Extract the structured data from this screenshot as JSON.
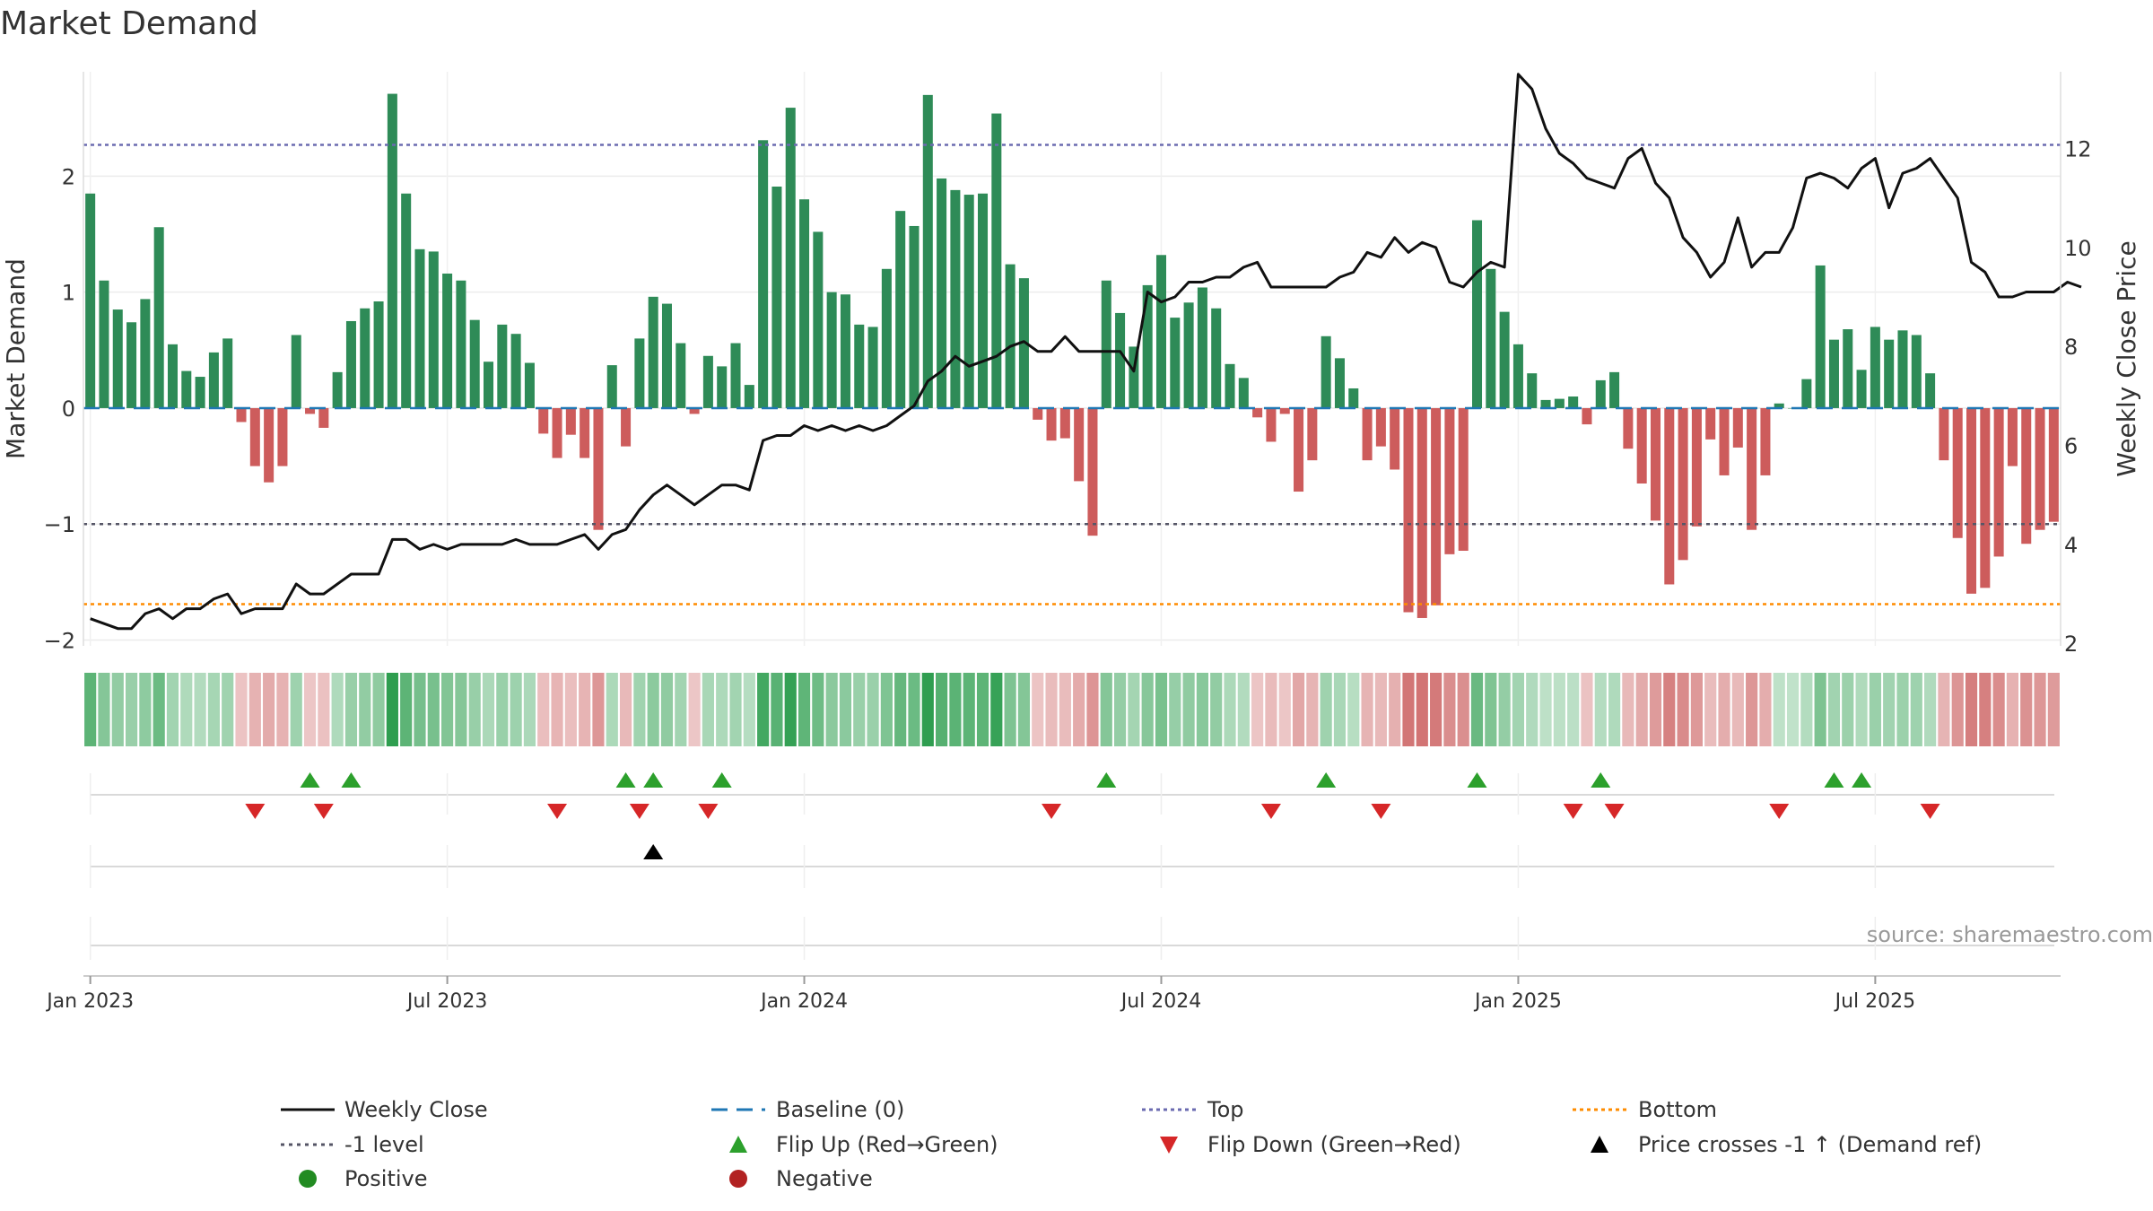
{
  "chart_data": {
    "type": "bar",
    "title": "Market Demand",
    "ylabel": "Market Demand",
    "y2label": "Weekly Close Price",
    "ylim": [
      -2.05,
      2.9
    ],
    "y2lim": [
      1.95,
      13.55
    ],
    "yticks": [
      "2",
      "1",
      "0",
      "−1",
      "−2"
    ],
    "yticks_values": [
      2,
      1,
      0,
      -1,
      -2
    ],
    "y2ticks": [
      "12",
      "10",
      "8",
      "6",
      "4",
      "2"
    ],
    "y2ticks_values": [
      12,
      10,
      8,
      6,
      4,
      2
    ],
    "xticks": [
      "Jan 2023",
      "Jul 2023",
      "Jan 2024",
      "Jul 2024",
      "Jan 2025",
      "Jul 2025"
    ],
    "xticks_week": [
      1,
      27,
      53,
      79,
      105,
      131
    ],
    "top_level": 2.27,
    "bottom_level": -1.69,
    "minus_one_level": -1.0,
    "demand": [
      1.85,
      1.1,
      0.85,
      0.74,
      0.94,
      1.56,
      0.55,
      0.32,
      0.27,
      0.48,
      0.6,
      -0.12,
      -0.5,
      -0.64,
      -0.5,
      0.63,
      -0.05,
      -0.17,
      0.31,
      0.75,
      0.86,
      0.92,
      2.71,
      1.85,
      1.37,
      1.35,
      1.16,
      1.1,
      0.76,
      0.4,
      0.72,
      0.64,
      0.39,
      -0.22,
      -0.43,
      -0.23,
      -0.43,
      -1.05,
      0.37,
      -0.33,
      0.6,
      0.96,
      0.9,
      0.56,
      -0.05,
      0.45,
      0.36,
      0.56,
      0.2,
      2.31,
      1.91,
      2.59,
      1.8,
      1.52,
      1.0,
      0.98,
      0.72,
      0.7,
      1.2,
      1.7,
      1.57,
      2.7,
      1.98,
      1.88,
      1.84,
      1.85,
      2.54,
      1.24,
      1.12,
      -0.1,
      -0.28,
      -0.26,
      -0.63,
      -1.1,
      1.1,
      0.82,
      0.53,
      1.06,
      1.32,
      0.78,
      0.91,
      1.04,
      0.86,
      0.38,
      0.26,
      -0.08,
      -0.29,
      -0.05,
      -0.72,
      -0.45,
      0.62,
      0.43,
      0.17,
      -0.45,
      -0.33,
      -0.53,
      -1.76,
      -1.81,
      -1.7,
      -1.26,
      -1.23,
      1.62,
      1.2,
      0.83,
      0.55,
      0.3,
      0.07,
      0.08,
      0.1,
      -0.14,
      0.24,
      0.31,
      -0.35,
      -0.65,
      -0.97,
      -1.52,
      -1.31,
      -1.02,
      -0.27,
      -0.58,
      -0.34,
      -1.05,
      -0.58,
      0.04,
      0.0,
      0.25,
      1.23,
      0.59,
      0.68,
      0.33,
      0.7,
      0.59,
      0.67,
      0.63,
      0.3,
      -0.45,
      -1.12,
      -1.6,
      -1.55,
      -1.28,
      -0.5,
      -1.17,
      -1.05,
      -0.98
    ],
    "price": [
      2.5,
      2.4,
      2.3,
      2.3,
      2.6,
      2.7,
      2.5,
      2.7,
      2.7,
      2.9,
      3.0,
      2.6,
      2.7,
      2.7,
      2.7,
      3.2,
      3.0,
      3.0,
      3.2,
      3.4,
      3.4,
      3.4,
      4.1,
      4.1,
      3.9,
      4.0,
      3.9,
      4.0,
      4.0,
      4.0,
      4.0,
      4.1,
      4.0,
      4.0,
      4.0,
      4.1,
      4.2,
      3.9,
      4.2,
      4.3,
      4.7,
      5.0,
      5.2,
      5.0,
      4.8,
      5.0,
      5.2,
      5.2,
      5.1,
      6.1,
      6.2,
      6.2,
      6.4,
      6.3,
      6.4,
      6.3,
      6.4,
      6.3,
      6.4,
      6.6,
      6.8,
      7.3,
      7.5,
      7.8,
      7.6,
      7.7,
      7.8,
      8.0,
      8.1,
      7.9,
      7.9,
      8.2,
      7.9,
      7.9,
      7.9,
      7.9,
      7.5,
      9.1,
      8.9,
      9.0,
      9.3,
      9.3,
      9.4,
      9.4,
      9.6,
      9.7,
      9.2,
      9.2,
      9.2,
      9.2,
      9.2,
      9.4,
      9.5,
      9.9,
      9.8,
      10.2,
      9.9,
      10.1,
      10.0,
      9.3,
      9.2,
      9.5,
      9.7,
      9.6,
      13.5,
      13.2,
      12.4,
      11.9,
      11.7,
      11.4,
      11.3,
      11.2,
      11.8,
      12.0,
      11.3,
      11.0,
      10.2,
      9.9,
      9.4,
      9.7,
      10.6,
      9.6,
      9.9,
      9.9,
      10.4,
      11.4,
      11.5,
      11.4,
      11.2,
      11.6,
      11.8,
      10.8,
      11.5,
      11.6,
      11.8,
      11.4,
      11.0,
      9.7,
      9.5,
      9.0,
      9.0,
      9.1,
      9.1,
      9.1,
      9.3,
      9.2
    ],
    "flip_up_weeks": [
      16,
      19,
      39,
      41,
      46,
      74,
      90,
      101,
      110,
      127,
      129
    ],
    "flip_down_weeks": [
      12,
      17,
      34,
      40,
      45,
      70,
      86,
      94,
      108,
      111,
      123,
      134
    ],
    "cross_up_weeks": [
      41
    ],
    "legend": {
      "weekly_close": "Weekly Close",
      "baseline": "Baseline (0)",
      "top": "Top",
      "bottom": "Bottom",
      "minus_one": "-1 level",
      "flip_up": "Flip Up (Red→Green)",
      "flip_down": "Flip Down (Green→Red)",
      "cross": "Price crosses -1 ↑ (Demand ref)",
      "positive": "Positive",
      "negative": "Negative"
    },
    "source": "source: sharemaestro.com",
    "colors": {
      "positive": "#2e8b57",
      "negative": "#cd5c5c",
      "price": "#111111",
      "baseline": "#1f77b4",
      "top": "#6b6bb0",
      "bottom": "#ff8c00",
      "minus_one": "#555566",
      "flip_up": "#2ca02c",
      "flip_down": "#d62728",
      "cross": "#000000",
      "positive_dot": "#228b22",
      "negative_dot": "#b22222"
    }
  }
}
